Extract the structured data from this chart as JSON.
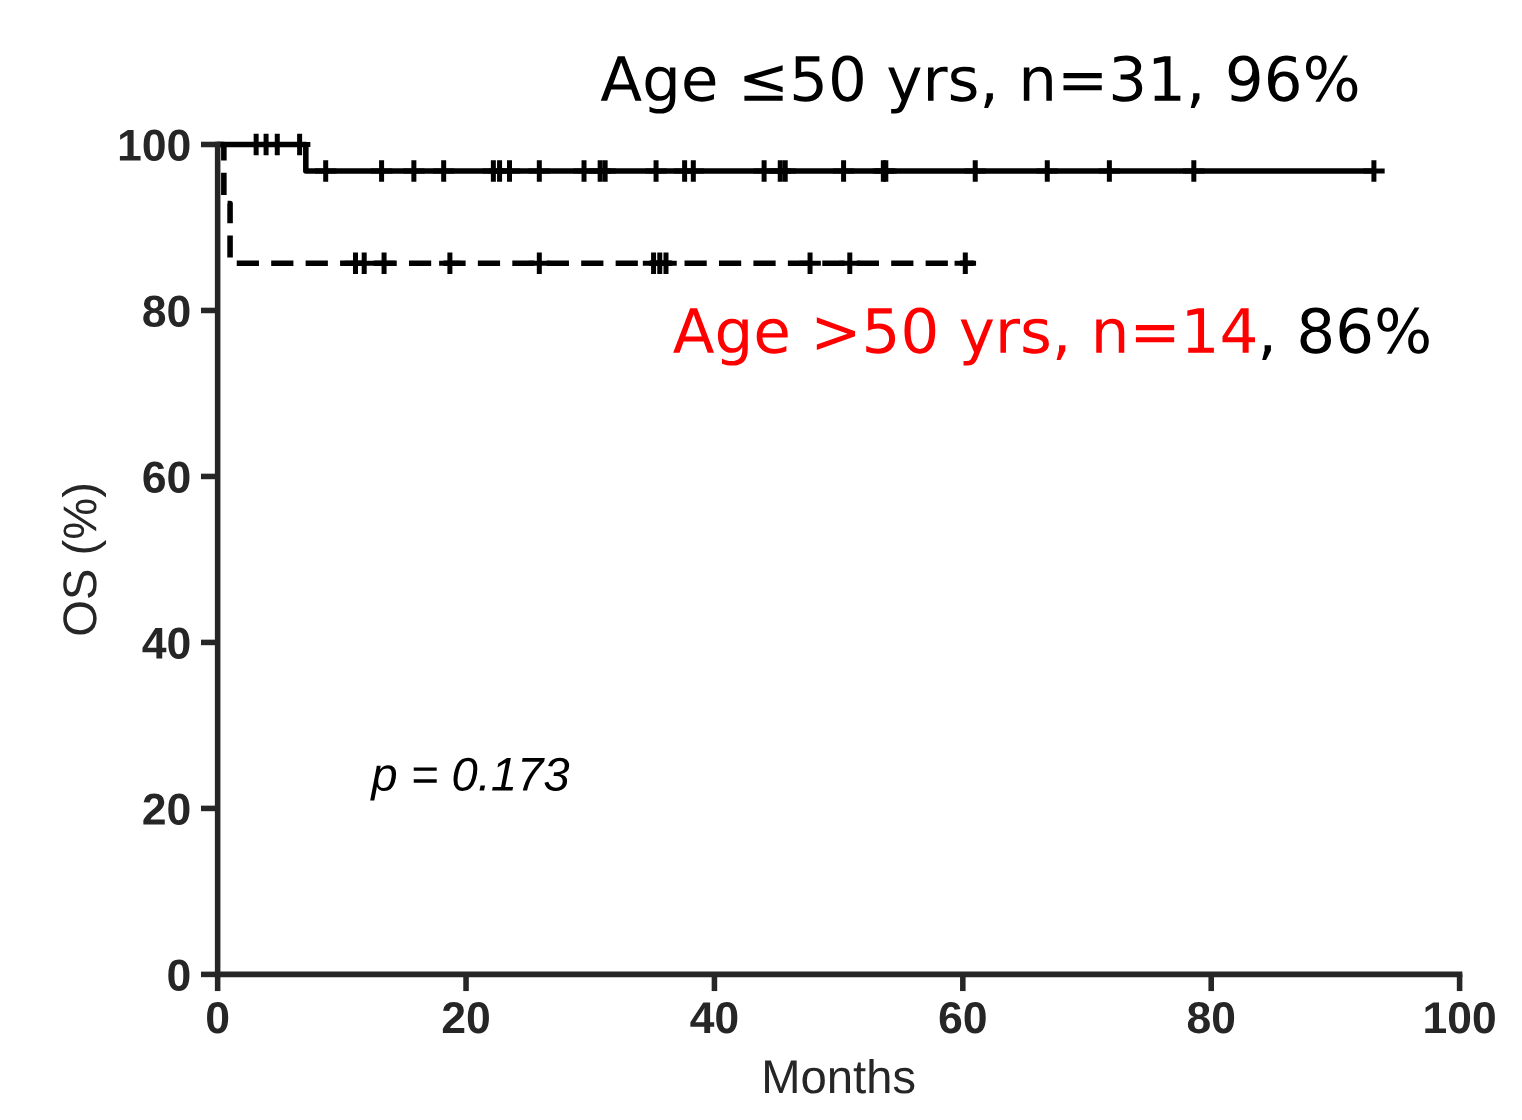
{
  "chart_data": {
    "type": "step",
    "xlabel": "Months",
    "ylabel": "OS (%)",
    "xlim": [
      0,
      100
    ],
    "xticks": [
      0,
      20,
      40,
      60,
      80,
      100
    ],
    "ylim": [
      0,
      100
    ],
    "yticks": [
      0,
      20,
      40,
      60,
      80,
      100
    ],
    "grid": false,
    "legend": false,
    "series": [
      {
        "type": "step",
        "color": "#000000",
        "line_style": "solid",
        "x": [
          0,
          7.1,
          93.1
        ],
        "values": [
          100,
          96.8,
          96.8
        ]
      },
      {
        "type": "step",
        "color": "#000000",
        "line_style": "dashed",
        "x": [
          0,
          0.5,
          1,
          60.9
        ],
        "values": [
          100,
          92.9,
          85.7,
          85.7
        ]
      },
      {
        "type": "scatter",
        "marker": "cross",
        "color": "#000000",
        "x": [
          3.1,
          3.9,
          4.8,
          6.6,
          8.7,
          13.2,
          15.8,
          18.2,
          22.2,
          22.7,
          23.5,
          25.9,
          29.5,
          30.8,
          31.2,
          35.3,
          37.6,
          38.3,
          44.0,
          45.3,
          45.7,
          50.4,
          53.6,
          53.8,
          61.0,
          66.8,
          71.8,
          78.6,
          93.1
        ],
        "values": [
          100,
          100,
          100,
          100,
          96.8,
          96.8,
          96.8,
          96.8,
          96.8,
          96.8,
          96.8,
          96.8,
          96.8,
          96.8,
          96.8,
          96.8,
          96.8,
          96.8,
          96.8,
          96.8,
          96.8,
          96.8,
          96.8,
          96.8,
          96.8,
          96.8,
          96.8,
          96.8,
          96.8
        ]
      },
      {
        "type": "scatter",
        "marker": "cross",
        "color": "#000000",
        "x": [
          11.1,
          11.8,
          13.4,
          18.7,
          25.9,
          35.1,
          35.6,
          36.1,
          47.7,
          50.9,
          60.2
        ],
        "values": [
          85.7,
          85.7,
          85.7,
          85.7,
          85.7,
          85.7,
          85.7,
          85.7,
          85.7,
          85.7,
          85.7
        ]
      }
    ],
    "annotations": [
      "Age ≤50 yrs, n=31, 96%",
      "Age >50 yrs, n=14",
      ", 86%",
      "p = 0.173"
    ]
  }
}
